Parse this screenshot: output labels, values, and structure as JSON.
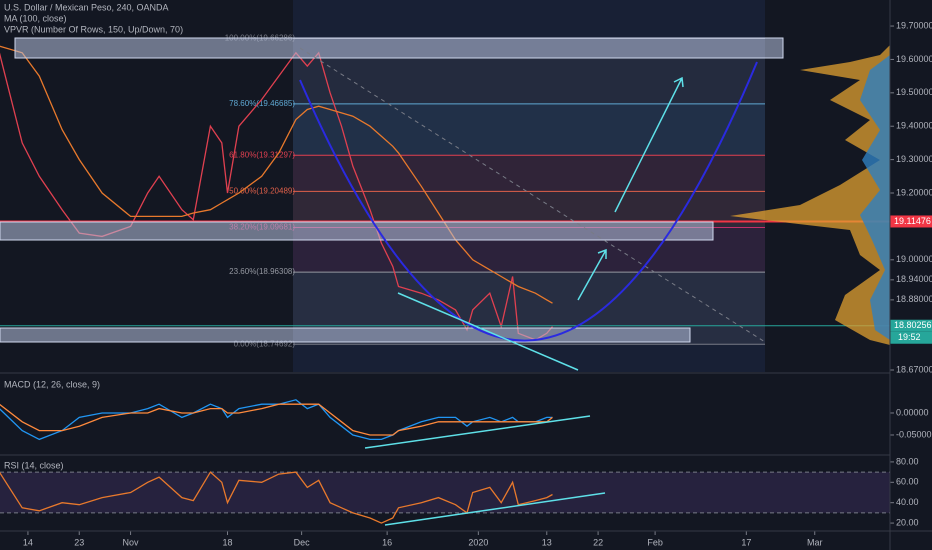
{
  "chart_data": [
    {
      "type": "line",
      "title": "U.S. Dollar / Mexican Peso, 240, OANDA",
      "annotations": [
        "VPVR (Number Of Rows, 150, Up/Down, 70)"
      ],
      "countdown": "19:52",
      "x": [
        -5,
        -1,
        2,
        6,
        9,
        13,
        18,
        21,
        23,
        27,
        29,
        32,
        34,
        35,
        37,
        41,
        44,
        47,
        49,
        51,
        53,
        55,
        57,
        60,
        62,
        64,
        65,
        69,
        72,
        75,
        77,
        78,
        81,
        83,
        85,
        86,
        89,
        91,
        92
      ],
      "series": [
        {
          "color": "#e04050",
          "values": [
            19.62,
            19.35,
            19.25,
            19.15,
            19.08,
            19.07,
            19.1,
            19.2,
            19.25,
            19.15,
            19.12,
            19.4,
            19.35,
            19.2,
            19.4,
            19.48,
            19.55,
            19.62,
            19.58,
            19.62,
            19.5,
            19.4,
            19.28,
            19.15,
            19.05,
            18.98,
            18.92,
            18.9,
            18.88,
            18.85,
            18.79,
            18.85,
            18.9,
            18.8,
            18.95,
            18.78,
            18.76,
            18.78,
            18.8
          ]
        },
        {
          "name": "MA (100, close)",
          "color": "#e8792c",
          "values": [
            19.64,
            19.62,
            19.55,
            19.39,
            19.3,
            19.2,
            19.13,
            19.13,
            19.13,
            19.13,
            19.14,
            19.15,
            19.17,
            19.18,
            19.2,
            19.25,
            19.32,
            19.42,
            19.45,
            19.46,
            19.45,
            19.44,
            19.43,
            19.4,
            19.37,
            19.34,
            19.32,
            19.22,
            19.14,
            19.06,
            19.02,
            19.0,
            18.97,
            18.95,
            18.93,
            18.92,
            18.9,
            18.88,
            18.87
          ]
        }
      ],
      "xlim": [
        -4.9,
        151.2
      ],
      "xticks": [
        {
          "value": 0,
          "label": "14"
        },
        {
          "value": 9,
          "label": "23"
        },
        {
          "value": 18,
          "label": "Nov"
        },
        {
          "value": 35,
          "label": "18"
        },
        {
          "value": 48,
          "label": "Dec"
        },
        {
          "value": 63,
          "label": "16"
        },
        {
          "value": 79,
          "label": "2020"
        },
        {
          "value": 91,
          "label": "13"
        },
        {
          "value": 100,
          "label": "22"
        },
        {
          "value": 110,
          "label": "Feb"
        },
        {
          "value": 126,
          "label": "17"
        },
        {
          "value": 138,
          "label": "Mar"
        }
      ],
      "ylim": [
        18.664,
        19.778
      ],
      "yticks": [
        {
          "value": 19.7,
          "label": "19.70000"
        },
        {
          "value": 19.6,
          "label": "19.60000"
        },
        {
          "value": 19.5,
          "label": "19.50000"
        },
        {
          "value": 19.4,
          "label": "19.40000"
        },
        {
          "value": 19.3,
          "label": "19.30000"
        },
        {
          "value": 19.2,
          "label": "19.20000"
        },
        {
          "value": 19.0,
          "label": "19.00000"
        },
        {
          "value": 18.94,
          "label": "18.94000"
        },
        {
          "value": 18.88,
          "label": "18.88000"
        },
        {
          "value": 18.67,
          "label": "18.67000"
        }
      ],
      "fib_levels": [
        {
          "value": 19.66286,
          "label": "100.00%(19.66286)",
          "color": "#787b86"
        },
        {
          "value": 19.46685,
          "label": "78.60%(19.46685)",
          "color": "#5fa8d3"
        },
        {
          "value": 19.31297,
          "label": "61.80%(19.31297)",
          "color": "#e04050"
        },
        {
          "value": 19.20489,
          "label": "50.00%(19.20489)",
          "color": "#e0604a"
        },
        {
          "value": 19.09681,
          "label": "38.20%(19.09681)",
          "color": "#c0306a"
        },
        {
          "value": 18.96308,
          "label": "23.60%(18.96308)",
          "color": "#9598a1"
        },
        {
          "value": 18.74692,
          "label": "0.00%(18.74692)",
          "color": "#787b86"
        }
      ],
      "price_markers": [
        {
          "value": 19.11476,
          "label": "19.11476",
          "color": "#f23645"
        },
        {
          "value": 18.80256,
          "label": "18.80256",
          "color": "#26a69a"
        }
      ]
    },
    {
      "type": "line",
      "title": "MACD (12, 26, close, 9)",
      "x": [
        -5,
        -1,
        2,
        6,
        9,
        13,
        18,
        21,
        23,
        27,
        29,
        32,
        34,
        35,
        37,
        41,
        44,
        47,
        49,
        51,
        53,
        55,
        57,
        60,
        62,
        64,
        65,
        69,
        72,
        75,
        77,
        78,
        81,
        83,
        85,
        86,
        89,
        91,
        92
      ],
      "series": [
        {
          "color": "#2196f3",
          "values": [
            0.01,
            -0.04,
            -0.06,
            -0.04,
            -0.01,
            0.0,
            0.0,
            0.01,
            0.02,
            -0.01,
            0.0,
            0.02,
            0.01,
            -0.01,
            0.01,
            0.02,
            0.02,
            0.03,
            0.01,
            0.02,
            -0.01,
            -0.03,
            -0.05,
            -0.06,
            -0.06,
            -0.05,
            -0.04,
            -0.02,
            -0.01,
            -0.01,
            -0.03,
            -0.02,
            -0.01,
            -0.02,
            -0.01,
            -0.02,
            -0.02,
            -0.01,
            -0.01
          ]
        },
        {
          "color": "#ff8a3d",
          "values": [
            0.02,
            -0.02,
            -0.04,
            -0.04,
            -0.03,
            -0.01,
            0.0,
            0.0,
            0.01,
            0.0,
            0.0,
            0.01,
            0.01,
            0.0,
            0.0,
            0.01,
            0.02,
            0.02,
            0.02,
            0.02,
            0.0,
            -0.02,
            -0.04,
            -0.05,
            -0.05,
            -0.05,
            -0.04,
            -0.03,
            -0.02,
            -0.02,
            -0.02,
            -0.02,
            -0.02,
            -0.02,
            -0.02,
            -0.02,
            -0.02,
            -0.02,
            -0.01
          ]
        }
      ],
      "xlim": [
        -4.9,
        151.2
      ],
      "ylim": [
        -0.0955,
        0.0886
      ],
      "yticks": [
        {
          "value": 0.0,
          "label": "0.00000"
        },
        {
          "value": -0.05,
          "label": "-0.05000"
        }
      ]
    },
    {
      "type": "line",
      "title": "RSI (14, close)",
      "x": [
        -5,
        -1,
        2,
        6,
        9,
        13,
        18,
        21,
        23,
        27,
        29,
        32,
        34,
        35,
        37,
        41,
        44,
        47,
        49,
        51,
        53,
        55,
        57,
        60,
        62,
        64,
        65,
        69,
        72,
        75,
        77,
        78,
        81,
        83,
        85,
        86,
        89,
        91,
        92
      ],
      "series": [
        {
          "color": "#e8792c",
          "values": [
            70,
            35,
            32,
            40,
            38,
            45,
            50,
            60,
            65,
            45,
            42,
            70,
            60,
            40,
            62,
            60,
            68,
            70,
            55,
            62,
            40,
            35,
            30,
            25,
            20,
            25,
            35,
            40,
            45,
            38,
            30,
            50,
            55,
            40,
            60,
            38,
            42,
            45,
            48
          ]
        }
      ],
      "band": [
        30,
        70
      ],
      "xlim": [
        -4.9,
        151.2
      ],
      "ylim": [
        13.2,
        85.8
      ],
      "yticks": [
        {
          "value": 80,
          "label": "80.00"
        },
        {
          "value": 60,
          "label": "60.00"
        },
        {
          "value": 40,
          "label": "40.00"
        },
        {
          "value": 20,
          "label": "20.00"
        }
      ]
    }
  ]
}
